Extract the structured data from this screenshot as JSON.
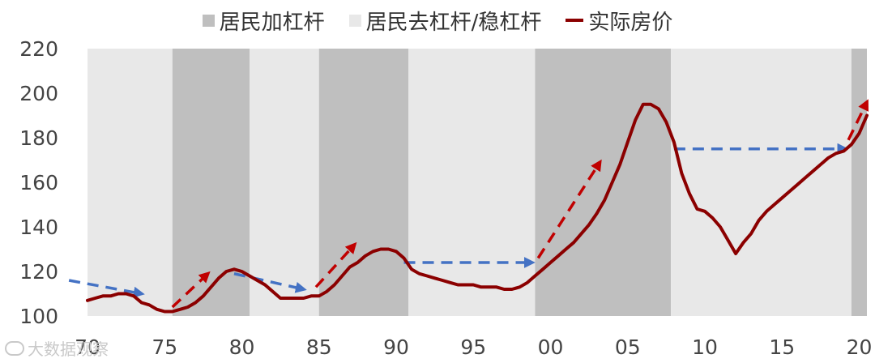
{
  "chart_data": {
    "type": "line",
    "title": "",
    "xlabel": "",
    "ylabel": "",
    "ylim": [
      100,
      220
    ],
    "yticks": [
      100,
      120,
      140,
      160,
      180,
      200,
      220
    ],
    "xlim": [
      1970,
      2020.5
    ],
    "xticks": [
      {
        "value": 1970,
        "label": "70"
      },
      {
        "value": 1975,
        "label": "75"
      },
      {
        "value": 1980,
        "label": "80"
      },
      {
        "value": 1985,
        "label": "85"
      },
      {
        "value": 1990,
        "label": "90"
      },
      {
        "value": 1995,
        "label": "95"
      },
      {
        "value": 2000,
        "label": "00"
      },
      {
        "value": 2005,
        "label": "05"
      },
      {
        "value": 2010,
        "label": "10"
      },
      {
        "value": 2015,
        "label": "15"
      },
      {
        "value": 2020,
        "label": "20"
      }
    ],
    "legend": {
      "position": "top-center",
      "items": [
        {
          "label": "居民加杠杆",
          "kind": "box",
          "color": "#bfbfbf"
        },
        {
          "label": "居民去杠杆/稳杠杆",
          "kind": "box",
          "color": "#e8e8e8"
        },
        {
          "label": "实际房价",
          "kind": "line",
          "color": "#8b0000"
        }
      ]
    },
    "periods": [
      {
        "type": "居民去杠杆/稳杠杆",
        "start": 1970.0,
        "end": 1975.5
      },
      {
        "type": "居民加杠杆",
        "start": 1975.5,
        "end": 1980.5
      },
      {
        "type": "居民去杠杆/稳杠杆",
        "start": 1980.5,
        "end": 1985.0
      },
      {
        "type": "居民加杠杆",
        "start": 1985.0,
        "end": 1990.8
      },
      {
        "type": "居民去杠杆/稳杠杆",
        "start": 1990.8,
        "end": 1999.0
      },
      {
        "type": "居民加杠杆",
        "start": 1999.0,
        "end": 2007.8
      },
      {
        "type": "居民去杠杆/稳杠杆",
        "start": 2007.8,
        "end": 2019.5
      },
      {
        "type": "居民加杠杆",
        "start": 2019.5,
        "end": 2020.5
      }
    ],
    "series": [
      {
        "name": "实际房价",
        "color": "#8b0000",
        "points": [
          [
            1970.0,
            107
          ],
          [
            1970.5,
            108
          ],
          [
            1971.0,
            109
          ],
          [
            1971.5,
            109
          ],
          [
            1972.0,
            110
          ],
          [
            1972.5,
            110
          ],
          [
            1973.0,
            109
          ],
          [
            1973.5,
            106
          ],
          [
            1974.0,
            105
          ],
          [
            1974.5,
            103
          ],
          [
            1975.0,
            102
          ],
          [
            1975.5,
            102
          ],
          [
            1976.0,
            103
          ],
          [
            1976.5,
            104
          ],
          [
            1977.0,
            106
          ],
          [
            1977.5,
            109
          ],
          [
            1978.0,
            113
          ],
          [
            1978.5,
            117
          ],
          [
            1979.0,
            120
          ],
          [
            1979.5,
            121
          ],
          [
            1980.0,
            120
          ],
          [
            1980.5,
            118
          ],
          [
            1981.0,
            116
          ],
          [
            1981.5,
            114
          ],
          [
            1982.0,
            111
          ],
          [
            1982.5,
            108
          ],
          [
            1983.0,
            108
          ],
          [
            1983.5,
            108
          ],
          [
            1984.0,
            108
          ],
          [
            1984.5,
            109
          ],
          [
            1985.0,
            109
          ],
          [
            1985.5,
            111
          ],
          [
            1986.0,
            114
          ],
          [
            1986.5,
            118
          ],
          [
            1987.0,
            122
          ],
          [
            1987.5,
            124
          ],
          [
            1988.0,
            127
          ],
          [
            1988.5,
            129
          ],
          [
            1989.0,
            130
          ],
          [
            1989.5,
            130
          ],
          [
            1990.0,
            129
          ],
          [
            1990.5,
            126
          ],
          [
            1991.0,
            121
          ],
          [
            1991.5,
            119
          ],
          [
            1992.0,
            118
          ],
          [
            1992.5,
            117
          ],
          [
            1993.0,
            116
          ],
          [
            1993.5,
            115
          ],
          [
            1994.0,
            114
          ],
          [
            1994.5,
            114
          ],
          [
            1995.0,
            114
          ],
          [
            1995.5,
            113
          ],
          [
            1996.0,
            113
          ],
          [
            1996.5,
            113
          ],
          [
            1997.0,
            112
          ],
          [
            1997.5,
            112
          ],
          [
            1998.0,
            113
          ],
          [
            1998.5,
            115
          ],
          [
            1999.0,
            118
          ],
          [
            1999.5,
            121
          ],
          [
            2000.0,
            124
          ],
          [
            2000.5,
            127
          ],
          [
            2001.0,
            130
          ],
          [
            2001.5,
            133
          ],
          [
            2002.0,
            137
          ],
          [
            2002.5,
            141
          ],
          [
            2003.0,
            146
          ],
          [
            2003.5,
            152
          ],
          [
            2004.0,
            160
          ],
          [
            2004.5,
            168
          ],
          [
            2005.0,
            178
          ],
          [
            2005.5,
            188
          ],
          [
            2006.0,
            195
          ],
          [
            2006.5,
            195
          ],
          [
            2007.0,
            193
          ],
          [
            2007.5,
            187
          ],
          [
            2008.0,
            178
          ],
          [
            2008.5,
            164
          ],
          [
            2009.0,
            155
          ],
          [
            2009.5,
            148
          ],
          [
            2010.0,
            147
          ],
          [
            2010.5,
            144
          ],
          [
            2011.0,
            140
          ],
          [
            2011.5,
            134
          ],
          [
            2012.0,
            128
          ],
          [
            2012.5,
            133
          ],
          [
            2013.0,
            137
          ],
          [
            2013.5,
            143
          ],
          [
            2014.0,
            147
          ],
          [
            2014.5,
            150
          ],
          [
            2015.0,
            153
          ],
          [
            2015.5,
            156
          ],
          [
            2016.0,
            159
          ],
          [
            2016.5,
            162
          ],
          [
            2017.0,
            165
          ],
          [
            2017.5,
            168
          ],
          [
            2018.0,
            171
          ],
          [
            2018.5,
            173
          ],
          [
            2019.0,
            174
          ],
          [
            2019.5,
            177
          ],
          [
            2020.0,
            182
          ],
          [
            2020.5,
            190
          ]
        ]
      }
    ],
    "annotations": [
      {
        "type": "arrow",
        "color": "#4472c4",
        "from": [
          1968.8,
          116
        ],
        "to": [
          1973.5,
          110
        ]
      },
      {
        "type": "arrow",
        "color": "#c00000",
        "from": [
          1975.5,
          104
        ],
        "to": [
          1977.8,
          119
        ]
      },
      {
        "type": "arrow",
        "color": "#4472c4",
        "from": [
          1979.5,
          119
        ],
        "to": [
          1984.0,
          112
        ]
      },
      {
        "type": "arrow",
        "color": "#c00000",
        "from": [
          1984.8,
          113
        ],
        "to": [
          1987.3,
          132
        ]
      },
      {
        "type": "arrow",
        "color": "#4472c4",
        "from": [
          1990.5,
          124
        ],
        "to": [
          1998.8,
          124
        ]
      },
      {
        "type": "arrow",
        "color": "#c00000",
        "from": [
          1999.2,
          126
        ],
        "to": [
          2003.2,
          169
        ]
      },
      {
        "type": "arrow",
        "color": "#4472c4",
        "from": [
          2008.0,
          175
        ],
        "to": [
          2019.1,
          175
        ]
      },
      {
        "type": "arrow",
        "color": "#c00000",
        "from": [
          2019.3,
          179
        ],
        "to": [
          2020.5,
          196
        ]
      }
    ]
  },
  "watermark": {
    "text": "大数据观察"
  }
}
